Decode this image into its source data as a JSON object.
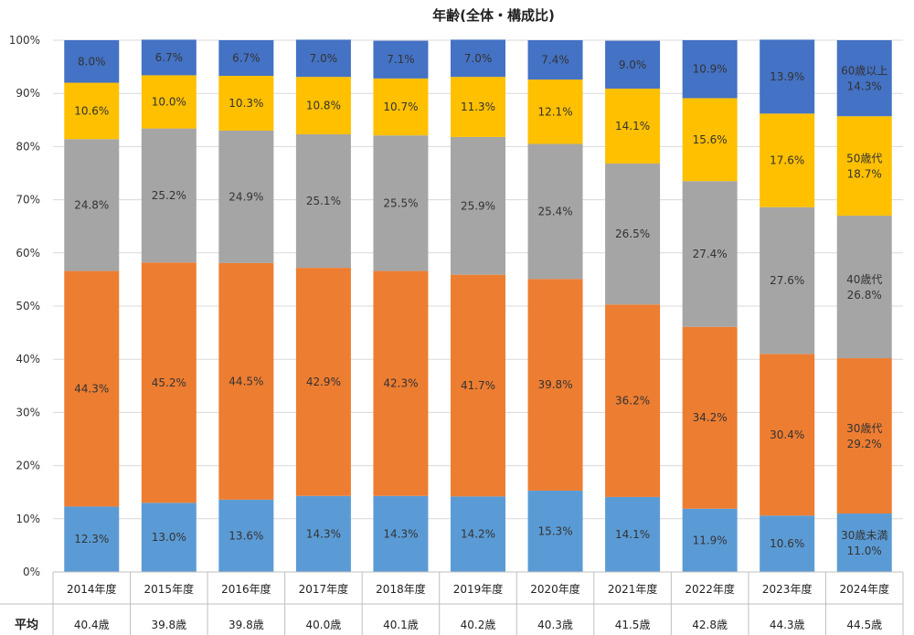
{
  "chart_data": {
    "type": "bar",
    "stacked": true,
    "title": "年齢(全体・構成比)",
    "ylim": [
      0,
      100
    ],
    "ytick_labels": [
      "0%",
      "10%",
      "20%",
      "30%",
      "40%",
      "50%",
      "60%",
      "70%",
      "80%",
      "90%",
      "100%"
    ],
    "categories": [
      "2014年度",
      "2015年度",
      "2016年度",
      "2017年度",
      "2018年度",
      "2019年度",
      "2020年度",
      "2021年度",
      "2022年度",
      "2023年度",
      "2024年度"
    ],
    "series": [
      {
        "name": "30歳未満",
        "color": "#5b9bd5",
        "values": [
          12.3,
          13.0,
          13.6,
          14.3,
          14.3,
          14.2,
          15.3,
          14.1,
          11.9,
          10.6,
          11.0
        ]
      },
      {
        "name": "30歳代",
        "color": "#ed7d31",
        "values": [
          44.3,
          45.2,
          44.5,
          42.9,
          42.3,
          41.7,
          39.8,
          36.2,
          34.2,
          30.4,
          29.2
        ]
      },
      {
        "name": "40歳代",
        "color": "#a5a5a5",
        "values": [
          24.8,
          25.2,
          24.9,
          25.1,
          25.5,
          25.9,
          25.4,
          26.5,
          27.4,
          27.6,
          26.8
        ]
      },
      {
        "name": "50歳代",
        "color": "#ffc000",
        "values": [
          10.6,
          10.0,
          10.3,
          10.8,
          10.7,
          11.3,
          12.1,
          14.1,
          15.6,
          17.6,
          18.7
        ]
      },
      {
        "name": "60歳以上",
        "color": "#4472c4",
        "values": [
          8.0,
          6.7,
          6.7,
          7.0,
          7.1,
          7.0,
          7.4,
          9.0,
          10.9,
          13.9,
          14.3
        ]
      }
    ],
    "average_row": {
      "label": "平均",
      "values": [
        "40.4歳",
        "39.8歳",
        "39.8歳",
        "40.0歳",
        "40.1歳",
        "40.2歳",
        "40.3歳",
        "41.5歳",
        "42.8歳",
        "44.3歳",
        "44.5歳"
      ]
    },
    "legend": "inline labels on last bar",
    "grid": true
  }
}
